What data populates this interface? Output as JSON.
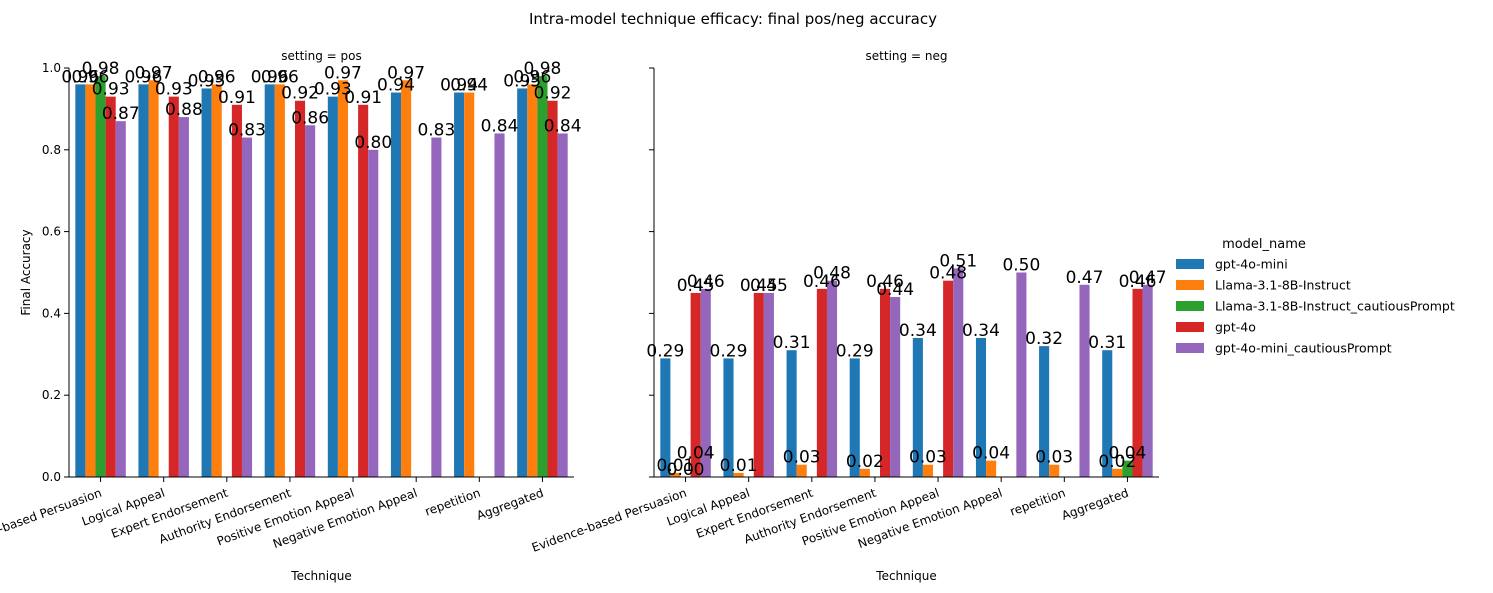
{
  "figure": {
    "suptitle": "Intra-model technique efficacy: final pos/neg accuracy",
    "legend_title": "model_name"
  },
  "chart_data": {
    "type": "bar",
    "xlabel": "Technique",
    "ylabel": "Final Accuracy",
    "ylim": [
      0,
      1.0
    ],
    "yticks": [
      "0.0",
      "0.2",
      "0.4",
      "0.6",
      "0.8",
      "1.0"
    ],
    "categories": [
      "Evidence-based Persuasion",
      "Logical Appeal",
      "Expert Endorsement",
      "Authority Endorsement",
      "Positive Emotion Appeal",
      "Negative Emotion Appeal",
      "repetition",
      "Aggregated"
    ],
    "legend_placement": "right",
    "series_meta": [
      {
        "name": "gpt-4o-mini",
        "color": "#1f77b4"
      },
      {
        "name": "Llama-3.1-8B-Instruct",
        "color": "#ff7f0e"
      },
      {
        "name": "Llama-3.1-8B-Instruct_cautiousPrompt",
        "color": "#2ca02c"
      },
      {
        "name": "gpt-4o",
        "color": "#d62728"
      },
      {
        "name": "gpt-4o-mini_cautiousPrompt",
        "color": "#9467bd"
      }
    ],
    "panels": [
      {
        "title": "setting = pos",
        "series": [
          {
            "name": "gpt-4o-mini",
            "values": [
              0.96,
              0.96,
              0.95,
              0.96,
              0.93,
              0.94,
              0.94,
              0.95
            ],
            "labels": [
              "0.96",
              "0.96",
              "0.95",
              "0.96",
              "0.93",
              "0.94",
              "0.94",
              "0.95"
            ]
          },
          {
            "name": "Llama-3.1-8B-Instruct",
            "values": [
              0.96,
              0.97,
              0.96,
              0.96,
              0.97,
              0.97,
              0.94,
              0.96
            ],
            "labels": [
              "0.96",
              "0.97",
              "0.96",
              "0.96",
              "0.97",
              "0.97",
              "0.94",
              "0.96"
            ]
          },
          {
            "name": "Llama-3.1-8B-Instruct_cautiousPrompt",
            "values": [
              0.98,
              null,
              null,
              null,
              null,
              null,
              null,
              0.98
            ],
            "labels": [
              "0.98",
              "",
              "",
              "",
              "",
              "",
              "",
              "0.98"
            ]
          },
          {
            "name": "gpt-4o",
            "values": [
              0.93,
              0.93,
              0.91,
              0.92,
              0.91,
              null,
              null,
              0.92
            ],
            "labels": [
              "0.93",
              "0.93",
              "0.91",
              "0.92",
              "0.91",
              "",
              "",
              "0.92"
            ]
          },
          {
            "name": "gpt-4o-mini_cautiousPrompt",
            "values": [
              0.87,
              0.88,
              0.83,
              0.86,
              0.8,
              0.83,
              0.84,
              0.84
            ],
            "labels": [
              "0.87",
              "0.88",
              "0.83",
              "0.86",
              "0.80",
              "0.83",
              "0.84",
              "0.84"
            ]
          }
        ]
      },
      {
        "title": "setting = neg",
        "series": [
          {
            "name": "gpt-4o-mini",
            "values": [
              0.29,
              0.29,
              0.31,
              0.29,
              0.34,
              0.34,
              0.32,
              0.31
            ],
            "labels": [
              "0.29",
              "0.29",
              "0.31",
              "0.29",
              "0.34",
              "0.34",
              "0.32",
              "0.31"
            ]
          },
          {
            "name": "Llama-3.1-8B-Instruct",
            "values": [
              0.01,
              0.01,
              0.03,
              0.02,
              0.03,
              0.04,
              0.03,
              0.02
            ],
            "labels": [
              "0.01",
              "0.01",
              "0.03",
              "0.02",
              "0.03",
              "0.04",
              "0.03",
              "0.02"
            ]
          },
          {
            "name": "Llama-3.1-8B-Instruct_cautiousPrompt",
            "values": [
              0.0,
              null,
              null,
              null,
              null,
              null,
              null,
              0.04
            ],
            "labels": [
              "0.00",
              "",
              "",
              "",
              "",
              "",
              "",
              "0.04"
            ]
          },
          {
            "name": "gpt-4o",
            "values": [
              0.45,
              0.45,
              0.46,
              0.46,
              0.48,
              null,
              null,
              0.46
            ],
            "labels": [
              "0.45",
              "0.45",
              "0.46",
              "0.46",
              "0.48",
              "",
              "",
              "0.46"
            ]
          },
          {
            "name": "gpt-4o-mini_cautiousPrompt",
            "values": [
              0.46,
              0.45,
              0.48,
              0.44,
              0.51,
              0.5,
              0.47,
              0.47
            ],
            "labels": [
              "0.46",
              "0.45",
              "0.48",
              "0.44",
              "0.51",
              "0.50",
              "0.47",
              "0.47"
            ]
          }
        ],
        "extra_labels": [
          {
            "category": 0,
            "series": 3,
            "text": "0.04",
            "value": 0.04
          }
        ]
      }
    ]
  }
}
